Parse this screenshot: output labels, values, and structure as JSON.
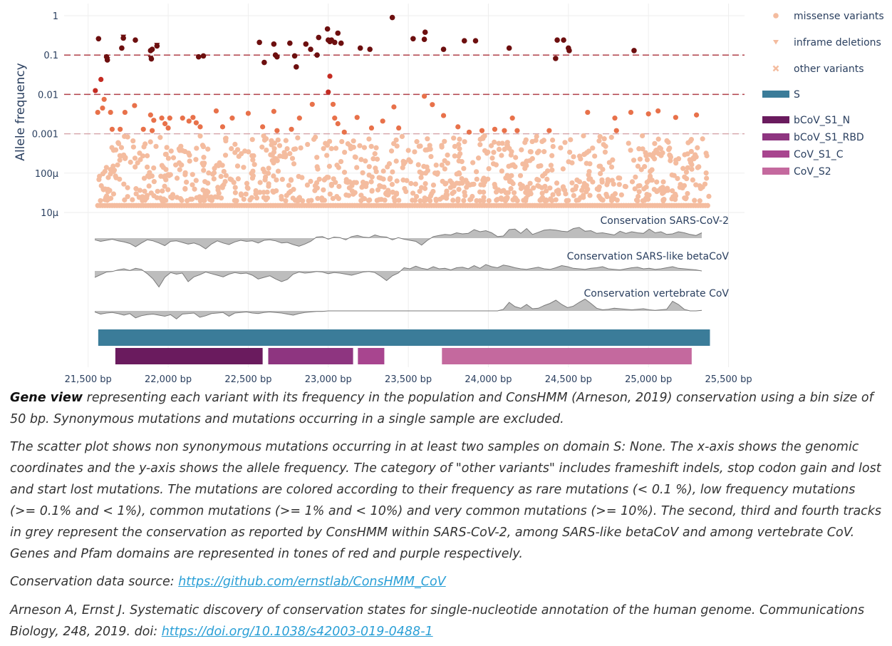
{
  "chart_data": {
    "type": "scatter",
    "x_axis": {
      "range": [
        21350,
        25600
      ],
      "ticks": [
        21500,
        22000,
        22500,
        23000,
        23500,
        24000,
        24500,
        25000,
        25500
      ],
      "tick_labels": [
        "21,500 bp",
        "22,000 bp",
        "22,500 bp",
        "23,000 bp",
        "23,500 bp",
        "24,000 bp",
        "24,500 bp",
        "25,000 bp",
        "25,500 bp"
      ]
    },
    "y_axis": {
      "scale": "log",
      "title": "Allele frequency",
      "ticks": [
        1,
        0.1,
        0.01,
        0.001,
        0.0001,
        1e-05
      ],
      "tick_labels": [
        "1",
        "0.1",
        "0.01",
        "0.001",
        "100µ",
        "10µ"
      ]
    },
    "threshold_lines": [
      0.1,
      0.01,
      0.001
    ],
    "colors": {
      "rare": "#f4bc9f",
      "low": "#e8714a",
      "common": "#c42c22",
      "very_common": "#6d0f0f",
      "conservation_fill": "#bdbdbd",
      "conservation_line": "#7a7a7a",
      "gene_S": "#3b7c99",
      "threshold_line": "#a5202a"
    },
    "legend": [
      {
        "name": "missense variants",
        "symbol": "circle"
      },
      {
        "name": "inframe deletions",
        "symbol": "triangle-down"
      },
      {
        "name": "other variants",
        "symbol": "x"
      },
      {
        "name": "S",
        "symbol": "bar",
        "color": "#3b7c99"
      },
      {
        "name": "bCoV_S1_N",
        "symbol": "bar",
        "color": "#6a1b5e"
      },
      {
        "name": "bCoV_S1_RBD",
        "symbol": "bar",
        "color": "#8e3580"
      },
      {
        "name": "CoV_S1_C",
        "symbol": "bar",
        "color": "#a8458f"
      },
      {
        "name": "CoV_S2",
        "symbol": "bar",
        "color": "#c4699e"
      }
    ],
    "very_common_points": [
      [
        21565,
        0.26
      ],
      [
        21615,
        0.09
      ],
      [
        21620,
        0.075
      ],
      [
        21710,
        0.15
      ],
      [
        21720,
        0.27
      ],
      [
        21795,
        0.24
      ],
      [
        21890,
        0.13
      ],
      [
        21895,
        0.08
      ],
      [
        21900,
        0.14
      ],
      [
        21930,
        0.17
      ],
      [
        22190,
        0.09
      ],
      [
        22220,
        0.095
      ],
      [
        22570,
        0.21
      ],
      [
        22600,
        0.065
      ],
      [
        22660,
        0.19
      ],
      [
        22670,
        0.1
      ],
      [
        22680,
        0.09
      ],
      [
        22760,
        0.2
      ],
      [
        22790,
        0.095
      ],
      [
        22800,
        0.05
      ],
      [
        22860,
        0.19
      ],
      [
        22890,
        0.14
      ],
      [
        22930,
        0.1
      ],
      [
        22940,
        0.28
      ],
      [
        22995,
        0.46
      ],
      [
        23000,
        0.24
      ],
      [
        23010,
        0.22
      ],
      [
        23020,
        0.24
      ],
      [
        23040,
        0.21
      ],
      [
        23060,
        0.36
      ],
      [
        23080,
        0.2
      ],
      [
        23200,
        0.15
      ],
      [
        23260,
        0.14
      ],
      [
        23400,
        0.9
      ],
      [
        23530,
        0.26
      ],
      [
        23600,
        0.25
      ],
      [
        23605,
        0.38
      ],
      [
        23720,
        0.14
      ],
      [
        23850,
        0.23
      ],
      [
        23920,
        0.23
      ],
      [
        24130,
        0.15
      ],
      [
        24420,
        0.082
      ],
      [
        24430,
        0.24
      ],
      [
        24470,
        0.24
      ],
      [
        24500,
        0.15
      ],
      [
        24505,
        0.13
      ],
      [
        24910,
        0.13
      ]
    ],
    "low_common_points": [
      [
        21545,
        0.0125
      ],
      [
        21580,
        0.024
      ],
      [
        21600,
        0.0075
      ],
      [
        21560,
        0.0035
      ],
      [
        21640,
        0.0035
      ],
      [
        21590,
        0.0045
      ],
      [
        21650,
        0.0013
      ],
      [
        21700,
        0.0013
      ],
      [
        21730,
        0.0035
      ],
      [
        21790,
        0.0052
      ],
      [
        21845,
        0.0013
      ],
      [
        21890,
        0.003
      ],
      [
        21900,
        0.0012
      ],
      [
        21910,
        0.0022
      ],
      [
        21960,
        0.0025
      ],
      [
        21980,
        0.0018
      ],
      [
        22000,
        0.0014
      ],
      [
        22010,
        0.0025
      ],
      [
        22090,
        0.0025
      ],
      [
        22130,
        0.0021
      ],
      [
        22155,
        0.0026
      ],
      [
        22175,
        0.0019
      ],
      [
        22200,
        0.0015
      ],
      [
        22300,
        0.0038
      ],
      [
        22340,
        0.0015
      ],
      [
        22400,
        0.0025
      ],
      [
        22500,
        0.0033
      ],
      [
        22590,
        0.0015
      ],
      [
        22660,
        0.0037
      ],
      [
        22680,
        0.0012
      ],
      [
        22770,
        0.0013
      ],
      [
        22820,
        0.0025
      ],
      [
        22900,
        0.0056
      ],
      [
        23000,
        0.0115
      ],
      [
        23010,
        0.029
      ],
      [
        23030,
        0.0056
      ],
      [
        23040,
        0.0025
      ],
      [
        23060,
        0.0018
      ],
      [
        23100,
        0.0011
      ],
      [
        23180,
        0.0026
      ],
      [
        23270,
        0.0014
      ],
      [
        23340,
        0.0021
      ],
      [
        23410,
        0.0048
      ],
      [
        23440,
        0.0014
      ],
      [
        23600,
        0.009
      ],
      [
        23650,
        0.0055
      ],
      [
        23720,
        0.0029
      ],
      [
        23810,
        0.0015
      ],
      [
        23880,
        0.0011
      ],
      [
        23960,
        0.0012
      ],
      [
        24040,
        0.0013
      ],
      [
        24100,
        0.0012
      ],
      [
        24150,
        0.0025
      ],
      [
        24180,
        0.0012
      ],
      [
        24380,
        0.0012
      ],
      [
        24620,
        0.0035
      ],
      [
        24790,
        0.0025
      ],
      [
        24800,
        0.0012
      ],
      [
        24890,
        0.0035
      ],
      [
        25000,
        0.0032
      ],
      [
        25060,
        0.0038
      ],
      [
        25170,
        0.0026
      ],
      [
        25300,
        0.003
      ]
    ],
    "rare_distribution": {
      "x_min": 21560,
      "x_max": 25380,
      "y_min": 1.5e-05,
      "y_max": 0.0009
    },
    "conservation_tracks": [
      {
        "label": "Conservation SARS-CoV-2",
        "values": [
          -0.3,
          -0.6,
          -0.4,
          -0.2,
          -0.5,
          -0.7,
          -1.0,
          -1.6,
          -0.9,
          -0.3,
          -0.5,
          -0.9,
          -1.4,
          -0.6,
          -0.5,
          -0.8,
          -1.1,
          -0.9,
          -1.3,
          -2.0,
          -1.1,
          -0.5,
          -0.9,
          -1.2,
          -0.7,
          -0.4,
          -0.6,
          -0.5,
          -0.9,
          -0.4,
          -0.3,
          -0.5,
          -0.9,
          -0.8,
          -1.2,
          -1.5,
          -1.1,
          -0.6,
          0.2,
          0.3,
          -0.2,
          0.2,
          0.1,
          -0.3,
          0.3,
          0.5,
          0.2,
          0.1,
          0.6,
          0.3,
          0.2,
          -0.3,
          0.1,
          -0.2,
          -0.4,
          -0.6,
          -1.3,
          -0.4,
          0.3,
          0.5,
          0.7,
          0.6,
          1.0,
          0.8,
          0.9,
          1.6,
          1.2,
          1.4,
          1.0,
          0.3,
          0.4,
          1.6,
          1.7,
          0.9,
          1.8,
          0.7,
          1.1,
          1.5,
          1.6,
          1.5,
          1.3,
          1.2,
          1.8,
          2.0,
          1.3,
          1.4,
          0.9,
          1.0,
          0.8,
          0.6,
          1.3,
          0.9,
          1.2,
          1.0,
          0.9,
          1.7,
          1.0,
          1.2,
          0.7,
          0.8,
          1.2,
          1.0,
          0.7,
          0.5,
          1.0
        ]
      },
      {
        "label": "Conservation SARS-like betaCoV",
        "values": [
          -1.2,
          -0.7,
          -0.2,
          -0.1,
          0.2,
          0.4,
          0.1,
          0.5,
          0.3,
          -0.5,
          -1.5,
          -3.0,
          -1.2,
          -0.3,
          -0.6,
          -0.4,
          -2.0,
          -1.1,
          -0.7,
          -0.2,
          -0.5,
          -0.8,
          -1.1,
          -0.6,
          -0.3,
          -0.5,
          -0.4,
          -0.8,
          -1.5,
          -1.2,
          -0.9,
          -1.5,
          -2.0,
          -1.6,
          -0.6,
          -0.2,
          -0.4,
          -0.3,
          -0.1,
          -0.2,
          -0.5,
          -0.3,
          -0.4,
          -0.6,
          -0.8,
          -0.5,
          -0.2,
          -0.1,
          -0.3,
          -1.0,
          -1.8,
          -0.9,
          -0.4,
          0.6,
          0.4,
          0.9,
          0.5,
          0.3,
          0.8,
          0.4,
          0.5,
          0.2,
          0.6,
          0.7,
          0.4,
          1.0,
          0.5,
          1.2,
          0.8,
          0.6,
          1.1,
          0.9,
          0.6,
          0.4,
          0.3,
          0.5,
          0.7,
          0.4,
          0.3,
          0.6,
          1.0,
          0.8,
          0.5,
          0.4,
          0.3,
          0.5,
          0.6,
          0.8,
          0.4,
          0.3,
          0.2,
          0.4,
          0.6,
          0.7,
          0.4,
          0.5,
          0.3,
          0.4,
          0.6,
          0.8,
          0.5,
          0.4,
          0.3,
          0.2,
          0.0
        ]
      },
      {
        "label": "Conservation vertebrate CoV",
        "values": [
          -0.2,
          -0.6,
          -0.4,
          -0.3,
          -0.5,
          -0.8,
          -0.5,
          -1.3,
          -0.9,
          -0.7,
          -0.6,
          -0.8,
          -1.0,
          -0.7,
          -1.5,
          -0.6,
          -0.5,
          -0.4,
          -1.2,
          -0.9,
          -0.5,
          -0.4,
          -0.3,
          -1.0,
          -0.4,
          -0.3,
          -0.2,
          -0.4,
          -0.5,
          -0.3,
          -0.2,
          -0.3,
          -0.4,
          -0.6,
          -0.8,
          -0.5,
          -0.3,
          -0.2,
          -0.1,
          -0.1,
          0.0,
          0.0,
          0.0,
          0.0,
          0.0,
          0.0,
          0.0,
          0.0,
          0.0,
          0.0,
          0.0,
          0.0,
          0.0,
          0.0,
          0.0,
          0.0,
          0.0,
          0.0,
          0.0,
          0.0,
          0.0,
          0.0,
          0.0,
          0.0,
          0.0,
          0.0,
          0.0,
          0.0,
          0.0,
          0.0,
          0.3,
          1.6,
          0.8,
          0.5,
          1.2,
          0.4,
          0.5,
          1.0,
          1.4,
          2.0,
          1.2,
          0.6,
          0.9,
          1.6,
          2.2,
          1.4,
          0.5,
          0.2,
          0.3,
          0.5,
          0.4,
          0.3,
          0.2,
          0.3,
          0.4,
          0.2,
          0.1,
          0.2,
          0.3,
          1.8,
          1.2,
          0.3,
          0.0,
          0.0,
          0.1
        ]
      }
    ],
    "gene_bars": [
      {
        "name": "S",
        "start": 21563,
        "end": 25384
      },
      {
        "name": "bCoV_S1_N",
        "start": 21670,
        "end": 22590
      },
      {
        "name": "bCoV_S1_RBD",
        "start": 22625,
        "end": 23155
      },
      {
        "name": "CoV_S1_C",
        "start": 23185,
        "end": 23350
      },
      {
        "name": "CoV_S2",
        "start": 23710,
        "end": 25270
      }
    ]
  },
  "caption": {
    "title": "Gene view",
    "line1_rest": " representing each variant with its frequency in the population and ConsHMM (Arneson, 2019) conservation using a bin size of 50 bp. Synonymous mutations and mutations occurring in a single sample are excluded.",
    "paragraph2": "The scatter plot shows non synonymous mutations occurring in at least two samples on domain S: None. The x-axis shows the genomic coordinates and the y-axis shows the allele frequency. The category of \"other variants\" includes frameshift indels, stop codon gain and lost and start lost mutations. The mutations are colored according to their frequency as rare mutations (< 0.1 %), low frequency mutations (>= 0.1% and < 1%), common mutations (>= 1% and < 10%) and very common mutations (>= 10%). The second, third and fourth tracks in grey represent the conservation as reported by ConsHMM within SARS-CoV-2, among SARS-like betaCoV and among vertebrate CoV. Genes and Pfam domains are represented in tones of red and purple respectively.",
    "source_prefix": "Conservation data source: ",
    "source_link": "https://github.com/ernstlab/ConsHMM_CoV",
    "reference_text": "Arneson A, Ernst J. Systematic discovery of conservation states for single-nucleotide annotation of the human genome. Communications Biology, 248, 2019. doi: ",
    "reference_link": "https://doi.org/10.1038/s42003-019-0488-1"
  }
}
